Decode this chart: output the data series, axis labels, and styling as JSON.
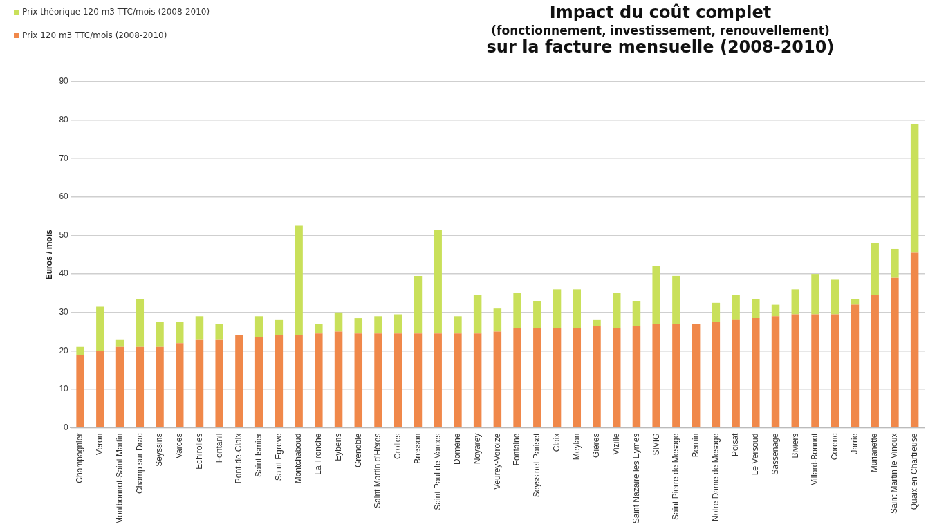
{
  "chart_data": {
    "type": "bar",
    "stacked": true,
    "title": "Impact du coût complet",
    "subtitle": "(fonctionnement, investissement, renouvellement)\nsur la facture mensuelle (2008-2010)",
    "ylabel": "Euros / mois",
    "categories": [
      "Champagnier",
      "Veron",
      "Montbonnot-Saint Martin",
      "Champ sur Drac",
      "Seyssins",
      "Varces",
      "Echirolles",
      "Fontanil",
      "Pont-de-Claix",
      "Saint Ismier",
      "Saint Egreve",
      "Montchaboud",
      "La Tronche",
      "Eybens",
      "Grenoble",
      "Saint Martin d'Hères",
      "Crolles",
      "Bresson",
      "Saint Paul de Varces",
      "Domène",
      "Noyarey",
      "Veurey-Voroize",
      "Fontaine",
      "Seyssinet Pariset",
      "Claix",
      "Meylan",
      "Gières",
      "Vizille",
      "Saint Nazaire les Eymes",
      "SIVIG",
      "Saint Pierre de Mesage",
      "Bernin",
      "Notre Dame de Mesage",
      "Poisat",
      "Le Versoud",
      "Sassenage",
      "Biviers",
      "Villard-Bonnot",
      "Corenc",
      "Jarrie",
      "Murianette",
      "Saint Martin le Vinoux",
      "Quaix en Chartreuse"
    ],
    "series": [
      {
        "name": "Prix 120 m3 TTC/mois (2008-2010)",
        "color": "#f0884a",
        "values": [
          19,
          20,
          21,
          21,
          21,
          22,
          23,
          23,
          24,
          23.5,
          24,
          24,
          24.5,
          25,
          24.5,
          24.5,
          24.5,
          24.5,
          24.5,
          24.5,
          24.5,
          25,
          26,
          26,
          26,
          26,
          26.5,
          26,
          26.5,
          27,
          27,
          27,
          27.5,
          28,
          28.5,
          29,
          29.5,
          29.5,
          29.5,
          32,
          34.5,
          39,
          45.5
        ]
      },
      {
        "name": "Prix théorique 120 m3 TTC/mois (2008-2010)",
        "color": "#c9e05a",
        "values": [
          2,
          11.5,
          2,
          12.5,
          6.5,
          5.5,
          6,
          4,
          0,
          5.5,
          4,
          28.5,
          2.5,
          5,
          4,
          4.5,
          5,
          15,
          27,
          4.5,
          10,
          6,
          9,
          7,
          10,
          10,
          1.5,
          9,
          6.5,
          15,
          12.5,
          0,
          5,
          6.5,
          5,
          3,
          6.5,
          10.5,
          9,
          1.5,
          13.5,
          7.5,
          33.5
        ]
      }
    ],
    "ylim": [
      0,
      90
    ],
    "yticks": [
      0,
      10,
      20,
      30,
      40,
      50,
      60,
      70,
      80,
      90
    ],
    "grid": "y",
    "legend": "top left"
  }
}
